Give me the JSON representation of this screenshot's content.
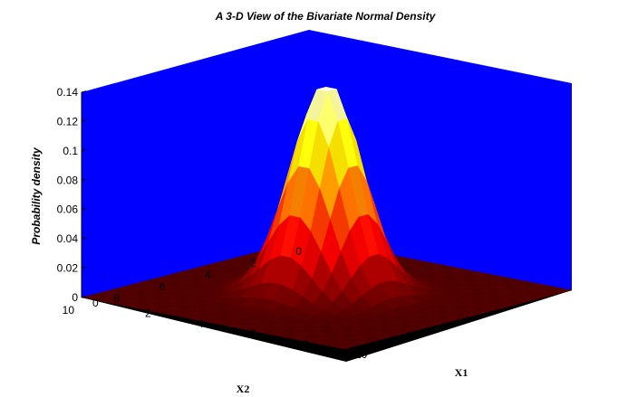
{
  "chart_data": {
    "type": "surface3d",
    "title": "A 3-D View of the Bivariate Normal Density",
    "zlabel": "Probability density",
    "x1label": "X1",
    "x2label": "X2",
    "zlim": [
      0,
      0.14
    ],
    "z_ticks": [
      "0",
      "0.02",
      "0.04",
      "0.06",
      "0.08",
      "0.1",
      "0.12",
      "0.14"
    ],
    "x1_ticks": [
      "0",
      "2",
      "4",
      "6",
      "8",
      "10"
    ],
    "x2_ticks": [
      "0",
      "2",
      "4",
      "6",
      "8",
      "10"
    ],
    "x1_range": [
      0,
      10
    ],
    "x2_range": [
      0,
      10
    ],
    "distribution": {
      "mean": [
        5,
        5
      ],
      "variance": [
        1.1,
        1.1
      ],
      "correlation": 0
    },
    "grid_step": 0.4,
    "colormap": "hot",
    "walls_color": "#0000ff",
    "floor_color": "#000000"
  }
}
